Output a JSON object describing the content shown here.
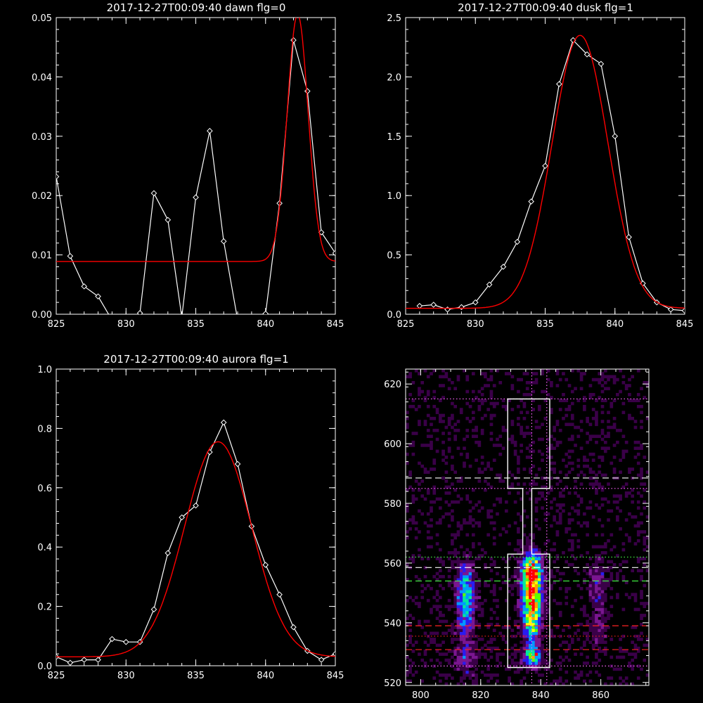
{
  "colors": {
    "background": "#000000",
    "axes": "#ffffff",
    "data": "#ffffff",
    "fit": "#ff0000"
  },
  "chart_data": [
    {
      "id": "dawn",
      "type": "line",
      "title": "2017-12-27T00:09:40 dawn flg=0",
      "xlim": [
        825,
        845
      ],
      "ylim": [
        0,
        0.05
      ],
      "xticks": [
        825,
        830,
        835,
        840,
        845
      ],
      "xtick_labels": [
        "825",
        "830",
        "835",
        "840",
        "845"
      ],
      "yticks": [
        0,
        0.01,
        0.02,
        0.03,
        0.04,
        0.05
      ],
      "ytick_labels": [
        "0.00",
        "0.01",
        "0.02",
        "0.03",
        "0.04",
        "0.05"
      ],
      "series": [
        {
          "style": "white-diamonds",
          "x": [
            825,
            826,
            827,
            828,
            829,
            830,
            831,
            832,
            833,
            834,
            835,
            836,
            837,
            838,
            839,
            840,
            841,
            842,
            843,
            844,
            845
          ],
          "y": [
            0.0232,
            0.0098,
            0.0047,
            0.003,
            -0.001,
            -0.002,
            0.0002,
            0.0204,
            0.0159,
            -0.0005,
            0.0197,
            0.0309,
            0.0123,
            -0.001,
            -0.002,
            0.0001,
            0.0187,
            0.0462,
            0.0376,
            0.0138,
            0.0103
          ]
        },
        {
          "style": "red-fit",
          "kind": "gaussian",
          "offset": 0.0089,
          "amp": 0.0416,
          "center": 842.3,
          "sigma": 0.75
        }
      ]
    },
    {
      "id": "dusk",
      "type": "line",
      "title": "2017-12-27T00:09:40 dusk flg=1",
      "xlim": [
        825,
        845
      ],
      "ylim": [
        0,
        2.5
      ],
      "xticks": [
        825,
        830,
        835,
        840,
        845
      ],
      "xtick_labels": [
        "825",
        "830",
        "835",
        "840",
        "845"
      ],
      "yticks": [
        0,
        0.5,
        1.0,
        1.5,
        2.0,
        2.5
      ],
      "ytick_labels": [
        "0.0",
        "0.5",
        "1.0",
        "1.5",
        "2.0",
        "2.5"
      ],
      "series": [
        {
          "style": "white-diamonds",
          "x": [
            826,
            827,
            828,
            829,
            830,
            831,
            832,
            833,
            834,
            835,
            836,
            837,
            838,
            839,
            840,
            841,
            842,
            843,
            844,
            845
          ],
          "y": [
            0.07,
            0.08,
            0.04,
            0.06,
            0.1,
            0.25,
            0.4,
            0.61,
            0.95,
            1.25,
            1.94,
            2.31,
            2.19,
            2.11,
            1.5,
            0.65,
            0.26,
            0.1,
            0.04,
            0.03
          ]
        },
        {
          "style": "red-fit",
          "kind": "gaussian",
          "offset": 0.05,
          "amp": 2.3,
          "center": 837.5,
          "sigma": 2.0
        }
      ]
    },
    {
      "id": "aurora",
      "type": "line",
      "title": "2017-12-27T00:09:40 aurora flg=1",
      "xlim": [
        825,
        845
      ],
      "ylim": [
        0,
        1.0
      ],
      "xticks": [
        825,
        830,
        835,
        840,
        845
      ],
      "xtick_labels": [
        "825",
        "830",
        "835",
        "840",
        "845"
      ],
      "yticks": [
        0,
        0.2,
        0.4,
        0.6,
        0.8,
        1.0
      ],
      "ytick_labels": [
        "0.0",
        "0.2",
        "0.4",
        "0.6",
        "0.8",
        "1.0"
      ],
      "series": [
        {
          "style": "white-diamonds",
          "x": [
            825,
            826,
            827,
            828,
            829,
            830,
            831,
            832,
            833,
            834,
            835,
            836,
            837,
            838,
            839,
            840,
            841,
            842,
            843,
            844,
            845
          ],
          "y": [
            0.03,
            0.01,
            0.02,
            0.02,
            0.09,
            0.08,
            0.08,
            0.19,
            0.38,
            0.5,
            0.54,
            0.72,
            0.82,
            0.68,
            0.47,
            0.34,
            0.24,
            0.13,
            0.05,
            0.02,
            0.04
          ]
        },
        {
          "style": "red-fit",
          "kind": "gaussian",
          "offset": 0.03,
          "amp": 0.725,
          "center": 836.6,
          "sigma": 2.4
        }
      ]
    },
    {
      "id": "image",
      "type": "heatmap",
      "title": "",
      "xlim": [
        795,
        876
      ],
      "ylim": [
        519,
        625
      ],
      "xticks": [
        800,
        820,
        840,
        860
      ],
      "xtick_labels": [
        "800",
        "820",
        "840",
        "860"
      ],
      "yticks": [
        520,
        540,
        560,
        580,
        600,
        620
      ],
      "ytick_labels": [
        "520",
        "540",
        "560",
        "580",
        "600",
        "620"
      ],
      "colormap": [
        "#000000",
        "#3a0048",
        "#7a1690",
        "#2a1cf0",
        "#009aff",
        "#00e8a0",
        "#5cff00",
        "#ffff00",
        "#ffa000",
        "#ff0000"
      ],
      "sources": [
        {
          "x": 815,
          "y": 551,
          "sx": 2.0,
          "sy": 6.0,
          "amp": 0.5
        },
        {
          "x": 815,
          "y": 540,
          "sx": 2.0,
          "sy": 5.0,
          "amp": 0.22
        },
        {
          "x": 815,
          "y": 528,
          "sx": 2.5,
          "sy": 4.0,
          "amp": 0.22
        },
        {
          "x": 837,
          "y": 556,
          "sx": 2.2,
          "sy": 5.0,
          "amp": 0.95
        },
        {
          "x": 837,
          "y": 546,
          "sx": 2.2,
          "sy": 4.5,
          "amp": 0.75
        },
        {
          "x": 837,
          "y": 538,
          "sx": 2.0,
          "sy": 3.5,
          "amp": 0.4
        },
        {
          "x": 837,
          "y": 529,
          "sx": 2.0,
          "sy": 2.5,
          "amp": 0.62
        },
        {
          "x": 859,
          "y": 553,
          "sx": 2.0,
          "sy": 6.0,
          "amp": 0.2
        },
        {
          "x": 859,
          "y": 537,
          "sx": 2.0,
          "sy": 5.0,
          "amp": 0.14
        }
      ],
      "hot_pixels": [
        {
          "x": 838,
          "y": 557
        },
        {
          "x": 836,
          "y": 557
        },
        {
          "x": 837,
          "y": 545
        },
        {
          "x": 838,
          "y": 529
        }
      ],
      "regions": [
        {
          "kind": "outline",
          "color": "#ffffff",
          "points": [
            [
              829,
              525
            ],
            [
              829,
              563
            ],
            [
              834,
              563
            ],
            [
              834,
              585
            ],
            [
              829,
              585
            ],
            [
              829,
              615
            ],
            [
              843,
              615
            ],
            [
              843,
              585
            ],
            [
              837,
              585
            ],
            [
              837,
              563
            ],
            [
              843,
              563
            ],
            [
              843,
              525
            ]
          ]
        }
      ],
      "hlines": [
        {
          "y": 615,
          "color": "#ff66ff",
          "style": "dotted"
        },
        {
          "y": 585,
          "color": "#ff66ff",
          "style": "dotted"
        },
        {
          "y": 588.5,
          "color": "#ffffff",
          "style": "dashed"
        },
        {
          "y": 562,
          "color": "#44ff44",
          "style": "dotted"
        },
        {
          "y": 558.5,
          "color": "#ffffff",
          "style": "dashed"
        },
        {
          "y": 554,
          "color": "#44ff44",
          "style": "dashed"
        },
        {
          "y": 539,
          "color": "#ff2222",
          "style": "dashed"
        },
        {
          "y": 535.5,
          "color": "#ff2222",
          "style": "dotted"
        },
        {
          "y": 531,
          "color": "#ff2222",
          "style": "dashed"
        },
        {
          "y": 525.5,
          "color": "#ff66ff",
          "style": "dotted"
        }
      ],
      "vlines": [
        {
          "x": 837,
          "color": "#ff66ff",
          "style": "dotted"
        },
        {
          "x": 842,
          "color": "#ff66ff",
          "style": "dotted"
        }
      ]
    }
  ]
}
